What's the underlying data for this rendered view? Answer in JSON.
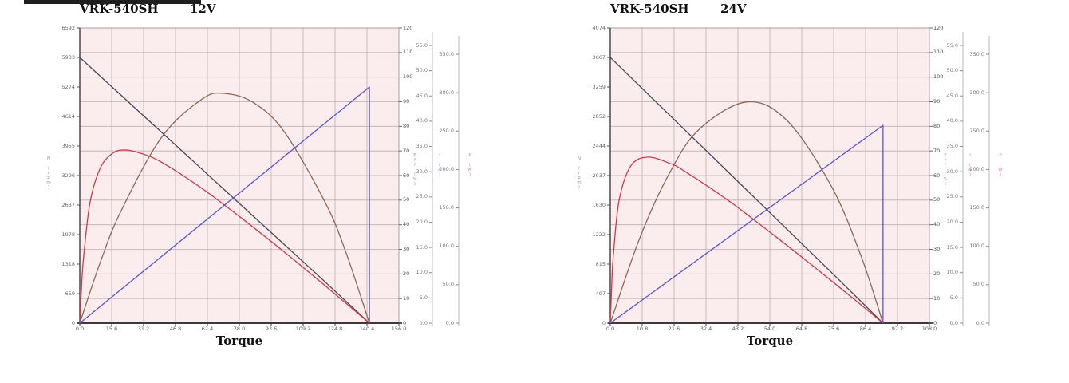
{
  "decor": {
    "top_bar_color": "#1f1f1f",
    "plot_bg": "#fbecee",
    "grid_color": "#bcaeb3",
    "axis_color": "#3b383e",
    "magenta": "#d678d6"
  },
  "chart_data": [
    {
      "type": "line",
      "title_model": "VRK-540SH",
      "title_voltage": "12V",
      "x_axis": {
        "label": "Torque",
        "min": 0,
        "max": 156,
        "ticks": [
          "0.0",
          "15.6",
          "31.2",
          "46.8",
          "62.4",
          "78.0",
          "93.6",
          "109.2",
          "124.8",
          "140.4",
          "156.0"
        ]
      },
      "y_axes": {
        "rpm": {
          "title": "N (rpm)",
          "max": 6592,
          "ticks": [
            "6592",
            "5933",
            "5274",
            "4614",
            "3955",
            "3296",
            "2637",
            "1978",
            "1318",
            "659",
            "0"
          ]
        },
        "pct": {
          "title": "Eff (%)",
          "max": 120,
          "ticks": [
            "120",
            "110",
            "100",
            "90",
            "80",
            "70",
            "60",
            "50",
            "40",
            "30",
            "20",
            "10",
            "0"
          ]
        },
        "amp": {
          "title": "I (A)",
          "max": 55,
          "ticks": [
            "55.0",
            "50.0",
            "45.0",
            "40.0",
            "35.0",
            "30.0",
            "25.0",
            "20.0",
            "15.0",
            "10.0",
            "5.0",
            "0.0"
          ]
        },
        "watt": {
          "title": "P (W)",
          "max": 350,
          "ticks": [
            "350.0",
            "300.0",
            "250.0",
            "200.0",
            "150.0",
            "100.0",
            "50.0",
            "0.0"
          ]
        }
      },
      "series": {
        "N": {
          "label": "N",
          "axis": "rpm",
          "color": "#4a4550",
          "label_color": "#3a3540",
          "smooth": false,
          "points": [
            [
              0,
              5933
            ],
            [
              20,
              5097
            ],
            [
              40,
              4262
            ],
            [
              60,
              3426
            ],
            [
              80,
              2590
            ],
            [
              100,
              1755
            ],
            [
              120,
              919
            ],
            [
              141.6,
              0
            ]
          ]
        },
        "Eff": {
          "label": "Eff",
          "axis": "pct",
          "color": "#cc3a4a",
          "label_color": "#d8232f",
          "smooth": true,
          "points": [
            [
              0,
              0
            ],
            [
              1,
              17
            ],
            [
              2,
              28
            ],
            [
              5,
              49
            ],
            [
              10,
              63
            ],
            [
              16,
              69
            ],
            [
              22,
              70.4
            ],
            [
              30,
              69
            ],
            [
              40,
              65.4
            ],
            [
              60,
              54.6
            ],
            [
              80,
              42.1
            ],
            [
              100,
              28.9
            ],
            [
              120,
              15.2
            ],
            [
              141.6,
              0
            ]
          ]
        },
        "P": {
          "label": "P",
          "axis": "watt",
          "color": "#8f6753",
          "label_color": "#b45a3c",
          "smooth": true,
          "points": [
            [
              0,
              0
            ],
            [
              10,
              79
            ],
            [
              20,
              145
            ],
            [
              40,
              242
            ],
            [
              60,
              292
            ],
            [
              70.8,
              299
            ],
            [
              85,
              287
            ],
            [
              100,
              249
            ],
            [
              120,
              157
            ],
            [
              130,
              93
            ],
            [
              141.6,
              0
            ]
          ]
        },
        "I": {
          "label": "I",
          "axis": "pct",
          "color": "#5b55c9",
          "label_color": "#34347e",
          "smooth": false,
          "points": [
            [
              0,
              0
            ],
            [
              141.6,
              96
            ],
            [
              141.6,
              0
            ]
          ]
        }
      },
      "label_pos": {
        "N": [
          108,
          56
        ],
        "Eff": [
          138,
          168
        ],
        "P": [
          283,
          96
        ],
        "I": [
          455,
          92
        ]
      }
    },
    {
      "type": "line",
      "title_model": "VRK-540SH",
      "title_voltage": "24V",
      "x_axis": {
        "label": "Torque",
        "min": 0,
        "max": 108,
        "ticks": [
          "0.0",
          "10.8",
          "21.6",
          "32.4",
          "43.2",
          "54.0",
          "64.8",
          "75.6",
          "86.4",
          "97.2",
          "108.0"
        ]
      },
      "y_axes": {
        "rpm": {
          "title": "N (rpm)",
          "max": 4074,
          "ticks": [
            "4074",
            "3667",
            "3259",
            "2852",
            "2444",
            "2037",
            "1630",
            "1222",
            "815",
            "407",
            "0"
          ]
        },
        "pct": {
          "title": "Eff (%)",
          "max": 120,
          "ticks": [
            "120",
            "110",
            "100",
            "90",
            "80",
            "70",
            "60",
            "50",
            "40",
            "30",
            "20",
            "10",
            "0"
          ]
        },
        "amp": {
          "title": "I (A)",
          "max": 55,
          "ticks": [
            "55.0",
            "50.0",
            "45.0",
            "40.0",
            "35.0",
            "30.0",
            "25.0",
            "20.0",
            "15.0",
            "10.0",
            "5.0",
            "0.0"
          ]
        },
        "watt": {
          "title": "P (W)",
          "max": 350,
          "ticks": [
            "350.0",
            "300.0",
            "250.0",
            "200.0",
            "150.0",
            "100.0",
            "50.0",
            "0.0"
          ]
        }
      },
      "series": {
        "N": {
          "label": "N",
          "axis": "rpm",
          "color": "#4a4550",
          "label_color": "#3a3540",
          "smooth": false,
          "points": [
            [
              0,
              3667
            ],
            [
              15,
              3072
            ],
            [
              30,
              2478
            ],
            [
              45,
              1883
            ],
            [
              60,
              1288
            ],
            [
              75,
              694
            ],
            [
              92.3,
              0
            ]
          ]
        },
        "Eff": {
          "label": "Eff",
          "axis": "pct",
          "color": "#cc3a4a",
          "label_color": "#d8232f",
          "smooth": true,
          "points": [
            [
              0,
              0
            ],
            [
              0.5,
              16
            ],
            [
              1,
              27
            ],
            [
              3,
              50
            ],
            [
              7,
              64
            ],
            [
              12.7,
              67.5
            ],
            [
              20,
              65
            ],
            [
              25,
              61.9
            ],
            [
              40,
              49.8
            ],
            [
              55,
              36.1
            ],
            [
              70,
              21.9
            ],
            [
              85,
              7.3
            ],
            [
              92.3,
              0
            ]
          ]
        },
        "P": {
          "label": "P",
          "axis": "watt",
          "color": "#8f6753",
          "label_color": "#b45a3c",
          "smooth": true,
          "points": [
            [
              0,
              0
            ],
            [
              10,
              111
            ],
            [
              20,
              195
            ],
            [
              30,
              252
            ],
            [
              46.2,
              288
            ],
            [
              60,
              263
            ],
            [
              75,
              177
            ],
            [
              85,
              86
            ],
            [
              92.3,
              0
            ]
          ]
        },
        "I": {
          "label": "I",
          "axis": "pct",
          "color": "#5b55c9",
          "label_color": "#34347e",
          "smooth": false,
          "points": [
            [
              0,
              0
            ],
            [
              92.3,
              80.4
            ],
            [
              92.3,
              0
            ]
          ]
        }
      },
      "label_pos": {
        "N": [
          107,
          58
        ],
        "Eff": [
          133,
          180
        ],
        "P": [
          283,
          106
        ],
        "I": [
          434,
          132
        ]
      }
    }
  ]
}
